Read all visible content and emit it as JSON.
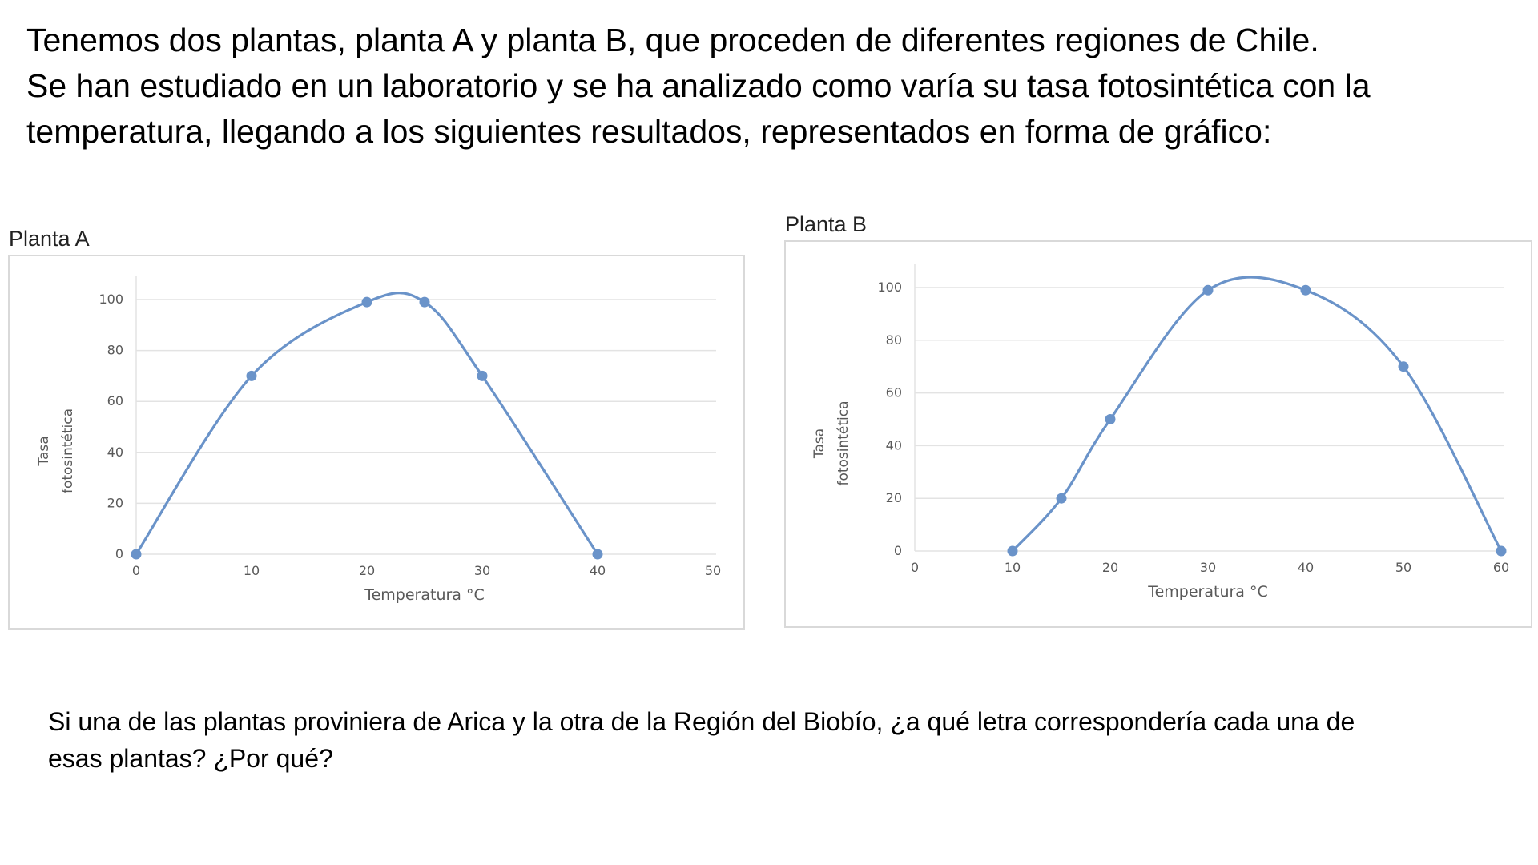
{
  "intro": {
    "line1": "Tenemos dos plantas, planta A y planta B, que proceden de diferentes regiones de Chile.",
    "line2": "Se han estudiado en un laboratorio y se ha analizado como varía su tasa fotosintética con la",
    "line3": "temperatura, llegando a los siguientes resultados, representados en forma de gráfico:"
  },
  "question": {
    "line1": "Si una de las plantas proviniera de Arica y la otra de la Región del Biobío, ¿a qué letra correspondería cada una de",
    "line2": "esas plantas? ¿Por qué?"
  },
  "colors": {
    "series": "#6a93c9",
    "grid": "#e3e3e3",
    "axis": "#bfbfbf",
    "text": "#595959"
  },
  "chart_data": [
    {
      "type": "line",
      "title": "Planta A",
      "xlabel": "Temperatura °C",
      "ylabel_line1": "Tasa",
      "ylabel_line2": "fotosintética",
      "xlim": [
        0,
        50
      ],
      "ylim": [
        0,
        100
      ],
      "xticks": [
        "0",
        "10",
        "20",
        "30",
        "40",
        "50"
      ],
      "yticks": [
        "0",
        "20",
        "40",
        "60",
        "80",
        "100"
      ],
      "grid": true,
      "smooth": true,
      "x": [
        0,
        10,
        20,
        25,
        30,
        40
      ],
      "y": [
        0,
        70,
        99,
        99,
        70,
        0
      ]
    },
    {
      "type": "line",
      "title": "Planta B",
      "xlabel": "Temperatura °C",
      "ylabel_line1": "Tasa",
      "ylabel_line2": "fotosintética",
      "xlim": [
        0,
        60
      ],
      "ylim": [
        0,
        100
      ],
      "xticks": [
        "0",
        "10",
        "20",
        "30",
        "40",
        "50",
        "60"
      ],
      "yticks": [
        "0",
        "20",
        "40",
        "60",
        "80",
        "100"
      ],
      "grid": true,
      "smooth": true,
      "x": [
        10,
        15,
        20,
        30,
        40,
        50,
        60
      ],
      "y": [
        0,
        20,
        50,
        99,
        99,
        70,
        0
      ]
    }
  ]
}
